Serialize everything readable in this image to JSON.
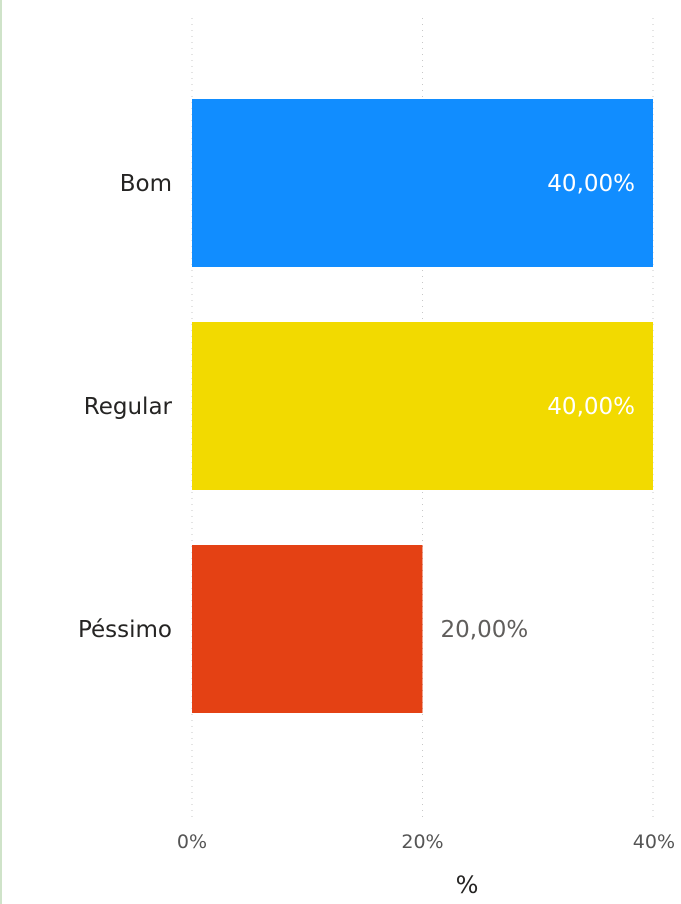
{
  "chart_data": {
    "type": "bar",
    "orientation": "horizontal",
    "categories": [
      "Bom",
      "Regular",
      "Péssimo"
    ],
    "values": [
      40,
      40,
      20
    ],
    "value_labels": [
      "40,00%",
      "40,00%",
      "20,00%"
    ],
    "colors": [
      "#118DFF",
      "#F2DA00",
      "#E44114"
    ],
    "xlim": [
      0,
      40
    ],
    "xticks": [
      0,
      20,
      40
    ],
    "xtick_labels": [
      "0%",
      "20%",
      "40%"
    ],
    "xlabel": "%",
    "grid": "vertical-dotted"
  }
}
